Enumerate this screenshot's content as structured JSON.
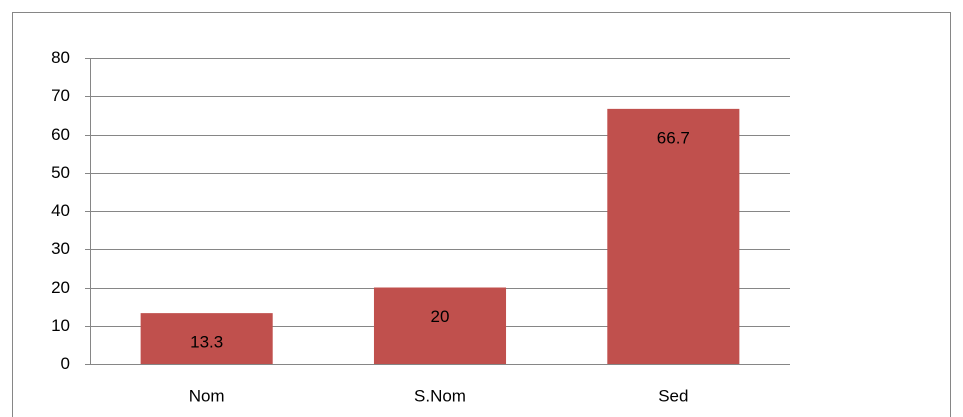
{
  "chart_data": {
    "type": "bar",
    "categories": [
      "Nom",
      "S.Nom",
      "Sed"
    ],
    "values": [
      13.3,
      20,
      66.7
    ],
    "color": "#c0504d",
    "ylim": [
      0,
      80
    ],
    "yticks": [
      0,
      10,
      20,
      30,
      40,
      50,
      60,
      70,
      80
    ],
    "grid": true,
    "data_labels": true
  }
}
